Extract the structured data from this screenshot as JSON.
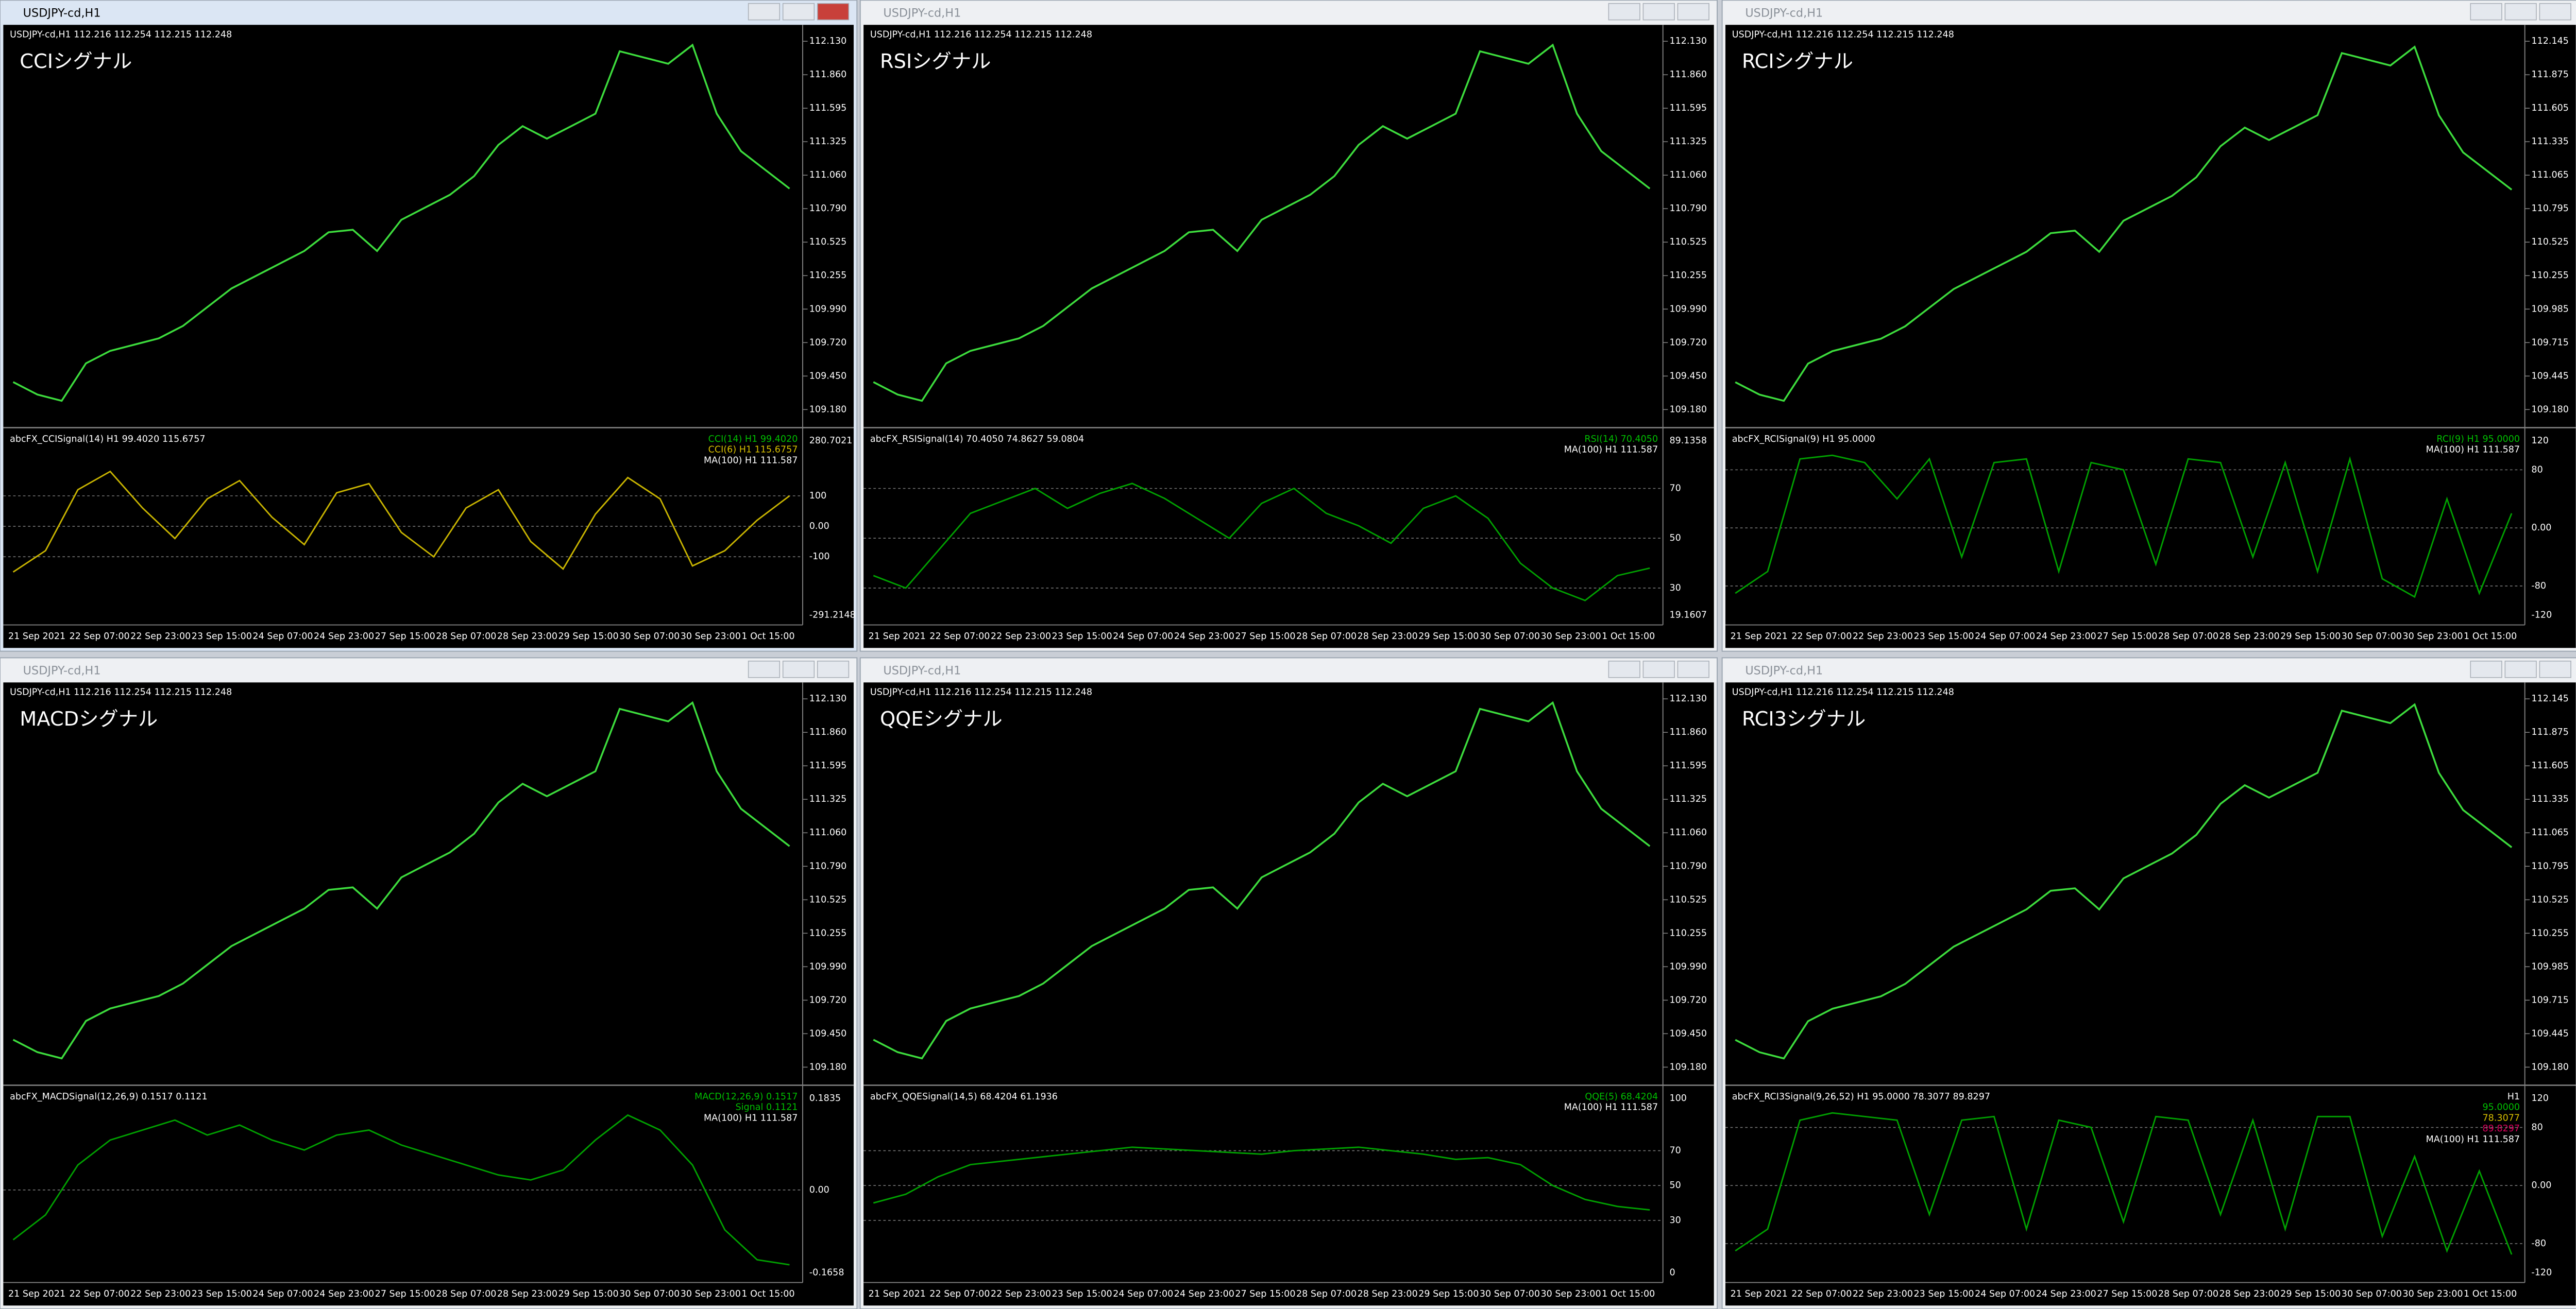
{
  "windows": [
    {
      "title": "USDJPY-cd,H1",
      "active": true,
      "info": "USDJPY-cd,H1  112.216 112.254 112.215 112.248",
      "label": "CCIシグナル",
      "yticks": [
        "112.130",
        "111.860",
        "111.595",
        "111.325",
        "111.060",
        "110.790",
        "110.525",
        "110.255",
        "109.990",
        "109.720",
        "109.450",
        "109.180"
      ],
      "price": [
        109.4,
        109.3,
        109.25,
        109.55,
        109.65,
        109.7,
        109.75,
        109.85,
        110.0,
        110.15,
        110.25,
        110.35,
        110.45,
        110.6,
        110.62,
        110.45,
        110.7,
        110.8,
        110.9,
        111.05,
        111.3,
        111.45,
        111.35,
        111.45,
        111.55,
        112.05,
        112.0,
        111.95,
        112.1,
        111.55,
        111.25,
        111.1,
        110.95
      ],
      "indicator": {
        "header": "abcFX_CCISignal(14) H1 99.4020 115.6757",
        "legend": [
          {
            "text": "CCI(14) H1 99.4020",
            "color": "#00c000"
          },
          {
            "text": "CCI(6) H1 115.6757",
            "color": "#d8c000"
          },
          {
            "text": "MA(100) H1 111.587",
            "color": "#ffffff"
          }
        ],
        "yticks": [
          "280.7021",
          "100",
          "0.00",
          "-100",
          "-291.2148"
        ],
        "color": "#c8b400",
        "values": [
          -150,
          -80,
          120,
          180,
          60,
          -40,
          90,
          150,
          30,
          -60,
          110,
          140,
          -20,
          -100,
          60,
          120,
          -50,
          -140,
          40,
          160,
          90,
          -130,
          -80,
          20,
          100
        ]
      },
      "xticks": [
        "21 Sep 2021",
        "22 Sep 07:00",
        "22 Sep 23:00",
        "23 Sep 15:00",
        "24 Sep 07:00",
        "24 Sep 23:00",
        "27 Sep 15:00",
        "28 Sep 07:00",
        "28 Sep 23:00",
        "29 Sep 15:00",
        "30 Sep 07:00",
        "30 Sep 23:00",
        "1 Oct 15:00"
      ]
    },
    {
      "title": "USDJPY-cd,H1",
      "active": false,
      "info": "USDJPY-cd,H1  112.216 112.254 112.215 112.248",
      "label": "RSIシグナル",
      "yticks": [
        "112.130",
        "111.860",
        "111.595",
        "111.325",
        "111.060",
        "110.790",
        "110.525",
        "110.255",
        "109.990",
        "109.720",
        "109.450",
        "109.180"
      ],
      "price": [
        109.4,
        109.3,
        109.25,
        109.55,
        109.65,
        109.7,
        109.75,
        109.85,
        110.0,
        110.15,
        110.25,
        110.35,
        110.45,
        110.6,
        110.62,
        110.45,
        110.7,
        110.8,
        110.9,
        111.05,
        111.3,
        111.45,
        111.35,
        111.45,
        111.55,
        112.05,
        112.0,
        111.95,
        112.1,
        111.55,
        111.25,
        111.1,
        110.95
      ],
      "indicator": {
        "header": "abcFX_RSISignal(14) 70.4050 74.8627 59.0804",
        "legend": [
          {
            "text": "RSI(14) 70.4050",
            "color": "#00c000"
          },
          {
            "text": "MA(100) H1 111.587",
            "color": "#ffffff"
          }
        ],
        "yticks": [
          "89.1358",
          "70",
          "50",
          "30",
          "19.1607"
        ],
        "color": "#00a000",
        "values": [
          35,
          30,
          45,
          60,
          65,
          70,
          62,
          68,
          72,
          66,
          58,
          50,
          64,
          70,
          60,
          55,
          48,
          62,
          67,
          58,
          40,
          30,
          25,
          35,
          38
        ]
      },
      "xticks": [
        "21 Sep 2021",
        "22 Sep 07:00",
        "22 Sep 23:00",
        "23 Sep 15:00",
        "24 Sep 07:00",
        "24 Sep 23:00",
        "27 Sep 15:00",
        "28 Sep 07:00",
        "28 Sep 23:00",
        "29 Sep 15:00",
        "30 Sep 07:00",
        "30 Sep 23:00",
        "1 Oct 15:00"
      ]
    },
    {
      "title": "USDJPY-cd,H1",
      "active": false,
      "info": "USDJPY-cd,H1  112.216 112.254 112.215 112.248",
      "label": "RCIシグナル",
      "yticks": [
        "112.145",
        "111.875",
        "111.605",
        "111.335",
        "111.065",
        "110.795",
        "110.525",
        "110.255",
        "109.985",
        "109.715",
        "109.445",
        "109.180"
      ],
      "price": [
        109.4,
        109.3,
        109.25,
        109.55,
        109.65,
        109.7,
        109.75,
        109.85,
        110.0,
        110.15,
        110.25,
        110.35,
        110.45,
        110.6,
        110.62,
        110.45,
        110.7,
        110.8,
        110.9,
        111.05,
        111.3,
        111.45,
        111.35,
        111.45,
        111.55,
        112.05,
        112.0,
        111.95,
        112.1,
        111.55,
        111.25,
        111.1,
        110.95
      ],
      "indicator": {
        "header": "abcFX_RCISignal(9) H1 95.0000",
        "legend": [
          {
            "text": "RCI(9) H1 95.0000",
            "color": "#00c000"
          },
          {
            "text": "MA(100) H1 111.587",
            "color": "#ffffff"
          }
        ],
        "yticks": [
          "120",
          "80",
          "0.00",
          "-80",
          "-120"
        ],
        "color": "#00a000",
        "values": [
          -90,
          -60,
          95,
          100,
          90,
          40,
          95,
          -40,
          90,
          95,
          -60,
          90,
          80,
          -50,
          95,
          90,
          -40,
          90,
          -60,
          95,
          -70,
          -95,
          40,
          -90,
          20
        ]
      },
      "xticks": [
        "21 Sep 2021",
        "22 Sep 07:00",
        "22 Sep 23:00",
        "23 Sep 15:00",
        "24 Sep 07:00",
        "24 Sep 23:00",
        "27 Sep 15:00",
        "28 Sep 07:00",
        "28 Sep 23:00",
        "29 Sep 15:00",
        "30 Sep 07:00",
        "30 Sep 23:00",
        "1 Oct 15:00"
      ]
    },
    {
      "title": "USDJPY-cd,H1",
      "active": false,
      "info": "USDJPY-cd,H1  112.216 112.254 112.215 112.248",
      "label": "MACDシグナル",
      "yticks": [
        "112.130",
        "111.860",
        "111.595",
        "111.325",
        "111.060",
        "110.790",
        "110.525",
        "110.255",
        "109.990",
        "109.720",
        "109.450",
        "109.180"
      ],
      "price": [
        109.4,
        109.3,
        109.25,
        109.55,
        109.65,
        109.7,
        109.75,
        109.85,
        110.0,
        110.15,
        110.25,
        110.35,
        110.45,
        110.6,
        110.62,
        110.45,
        110.7,
        110.8,
        110.9,
        111.05,
        111.3,
        111.45,
        111.35,
        111.45,
        111.55,
        112.05,
        112.0,
        111.95,
        112.1,
        111.55,
        111.25,
        111.1,
        110.95
      ],
      "indicator": {
        "header": "abcFX_MACDSignal(12,26,9) 0.1517 0.1121",
        "legend": [
          {
            "text": "MACD(12,26,9) 0.1517",
            "color": "#00c000"
          },
          {
            "text": "Signal 0.1121",
            "color": "#00c000"
          },
          {
            "text": "MA(100) H1 111.587",
            "color": "#ffffff"
          }
        ],
        "yticks": [
          "0.1835",
          "0.00",
          "-0.1658"
        ],
        "color": "#00a000",
        "values": [
          -0.1,
          -0.05,
          0.05,
          0.1,
          0.12,
          0.14,
          0.11,
          0.13,
          0.1,
          0.08,
          0.11,
          0.12,
          0.09,
          0.07,
          0.05,
          0.03,
          0.02,
          0.04,
          0.1,
          0.15,
          0.12,
          0.05,
          -0.08,
          -0.14,
          -0.15
        ]
      },
      "xticks": [
        "21 Sep 2021",
        "22 Sep 07:00",
        "22 Sep 23:00",
        "23 Sep 15:00",
        "24 Sep 07:00",
        "24 Sep 23:00",
        "27 Sep 15:00",
        "28 Sep 07:00",
        "28 Sep 23:00",
        "29 Sep 15:00",
        "30 Sep 07:00",
        "30 Sep 23:00",
        "1 Oct 15:00"
      ]
    },
    {
      "title": "USDJPY-cd,H1",
      "active": false,
      "info": "USDJPY-cd,H1  112.216 112.254 112.215 112.248",
      "label": "QQEシグナル",
      "yticks": [
        "112.130",
        "111.860",
        "111.595",
        "111.325",
        "111.060",
        "110.790",
        "110.525",
        "110.255",
        "109.990",
        "109.720",
        "109.450",
        "109.180"
      ],
      "price": [
        109.4,
        109.3,
        109.25,
        109.55,
        109.65,
        109.7,
        109.75,
        109.85,
        110.0,
        110.15,
        110.25,
        110.35,
        110.45,
        110.6,
        110.62,
        110.45,
        110.7,
        110.8,
        110.9,
        111.05,
        111.3,
        111.45,
        111.35,
        111.45,
        111.55,
        112.05,
        112.0,
        111.95,
        112.1,
        111.55,
        111.25,
        111.1,
        110.95
      ],
      "indicator": {
        "header": "abcFX_QQESignal(14,5) 68.4204 61.1936",
        "legend": [
          {
            "text": "QQE(5) 68.4204",
            "color": "#00c000"
          },
          {
            "text": "MA(100) H1 111.587",
            "color": "#ffffff"
          }
        ],
        "yticks": [
          "100",
          "70",
          "50",
          "30",
          "0"
        ],
        "color": "#00a000",
        "values": [
          40,
          45,
          55,
          62,
          64,
          66,
          68,
          70,
          72,
          71,
          70,
          69,
          68,
          70,
          71,
          72,
          70,
          68,
          65,
          66,
          62,
          50,
          42,
          38,
          36
        ]
      },
      "xticks": [
        "21 Sep 2021",
        "22 Sep 07:00",
        "22 Sep 23:00",
        "23 Sep 15:00",
        "24 Sep 07:00",
        "24 Sep 23:00",
        "27 Sep 15:00",
        "28 Sep 07:00",
        "28 Sep 23:00",
        "29 Sep 15:00",
        "30 Sep 07:00",
        "30 Sep 23:00",
        "1 Oct 15:00"
      ]
    },
    {
      "title": "USDJPY-cd,H1",
      "active": false,
      "info": "USDJPY-cd,H1  112.216 112.254 112.215 112.248",
      "label": "RCI3シグナル",
      "yticks": [
        "112.145",
        "111.875",
        "111.605",
        "111.335",
        "111.065",
        "110.795",
        "110.525",
        "110.255",
        "109.985",
        "109.715",
        "109.445",
        "109.180"
      ],
      "price": [
        109.4,
        109.3,
        109.25,
        109.55,
        109.65,
        109.7,
        109.75,
        109.85,
        110.0,
        110.15,
        110.25,
        110.35,
        110.45,
        110.6,
        110.62,
        110.45,
        110.7,
        110.8,
        110.9,
        111.05,
        111.3,
        111.45,
        111.35,
        111.45,
        111.55,
        112.05,
        112.0,
        111.95,
        112.1,
        111.55,
        111.25,
        111.1,
        110.95
      ],
      "indicator": {
        "header": "abcFX_RCI3Signal(9,26,52) H1 95.0000 78.3077 89.8297",
        "legend": [
          {
            "text": "H1",
            "color": "#ffffff"
          },
          {
            "text": "95.0000",
            "color": "#00c000"
          },
          {
            "text": "78.3077",
            "color": "#d8c000"
          },
          {
            "text": "89.8297",
            "color": "#e00060"
          },
          {
            "text": "MA(100) H1 111.587",
            "color": "#ffffff"
          }
        ],
        "yticks": [
          "120",
          "80",
          "0.00",
          "-80",
          "-120"
        ],
        "color": "#00a000",
        "values": [
          -90,
          -60,
          90,
          100,
          95,
          90,
          -40,
          90,
          95,
          -60,
          90,
          80,
          -50,
          95,
          90,
          -40,
          90,
          -60,
          95,
          95,
          -70,
          40,
          -90,
          20,
          -95
        ]
      },
      "xticks": [
        "21 Sep 2021",
        "22 Sep 07:00",
        "22 Sep 23:00",
        "23 Sep 15:00",
        "24 Sep 07:00",
        "24 Sep 23:00",
        "27 Sep 15:00",
        "28 Sep 07:00",
        "28 Sep 23:00",
        "29 Sep 15:00",
        "30 Sep 07:00",
        "30 Sep 23:00",
        "1 Oct 15:00"
      ]
    }
  ]
}
